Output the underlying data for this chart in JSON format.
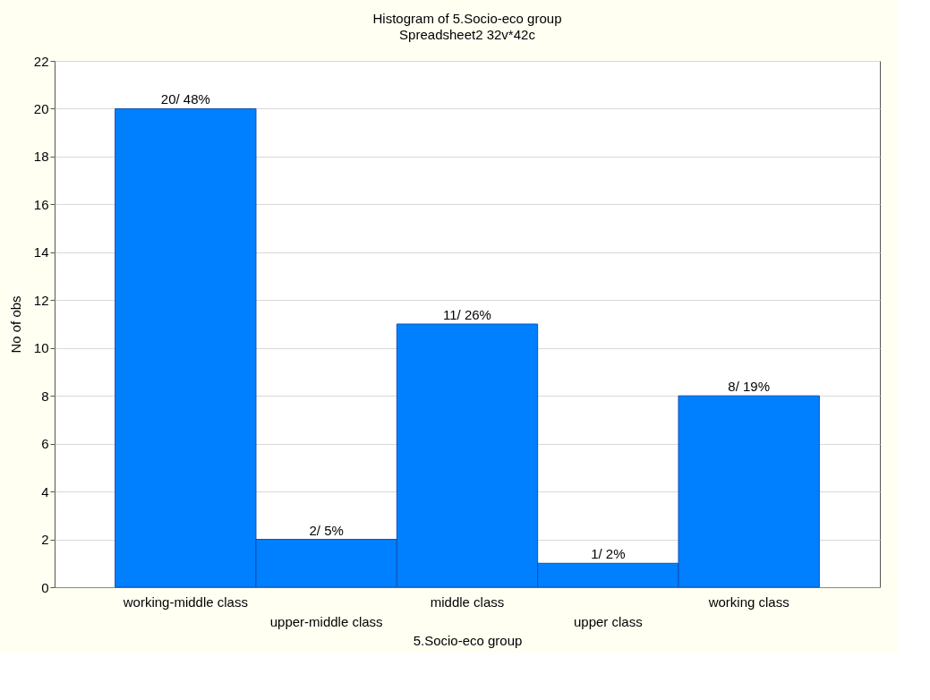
{
  "chart_data": {
    "type": "bar",
    "title": "Histogram of 5.Socio-eco group",
    "subtitle": "Spreadsheet2 32v*42c",
    "xlabel": "5.Socio-eco group",
    "ylabel": "No of obs",
    "categories": [
      "working-middle class",
      "upper-middle class",
      "middle class",
      "upper class",
      "working class"
    ],
    "values": [
      20,
      2,
      11,
      1,
      8
    ],
    "value_labels": [
      "20/ 48%",
      "2/ 5%",
      "11/ 26%",
      "1/ 2%",
      "8/ 19%"
    ],
    "color": "#0080ff",
    "ylim": [
      0,
      22
    ],
    "yticks": [
      0,
      2,
      4,
      6,
      8,
      10,
      12,
      14,
      16,
      18,
      20,
      22
    ],
    "grid": "y"
  }
}
